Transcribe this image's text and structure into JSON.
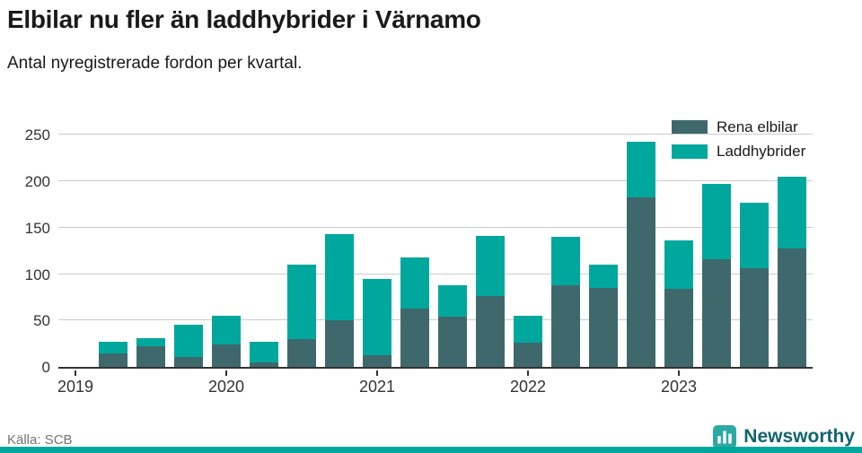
{
  "header": {
    "title": "Elbilar nu fler än laddhybrider i Värnamo",
    "subtitle": "Antal nyregistrerade fordon per kvartal."
  },
  "footer": {
    "source": "Källa: SCB",
    "brand": "Newsworthy"
  },
  "colors": {
    "accent": "#00a79d",
    "axis": "#333333",
    "grid": "#cccccc",
    "logo_icon": "#2ca9a4",
    "logo_text": "#10656e"
  },
  "chart_data": {
    "type": "bar",
    "stacked": true,
    "title": "Elbilar nu fler än laddhybrider i Värnamo",
    "subtitle": "Antal nyregistrerade fordon per kvartal.",
    "xlabel": "",
    "ylabel": "",
    "legend_position": "top-right",
    "grid": true,
    "yticks": [
      0,
      50,
      100,
      150,
      200,
      250
    ],
    "ylim": [
      0,
      262
    ],
    "xticks": [
      "2019",
      "2020",
      "2021",
      "2022",
      "2023"
    ],
    "quarters": [
      "2019 K2",
      "2019 K3",
      "2019 K4",
      "2020 K1",
      "2020 K2",
      "2020 K3",
      "2020 K4",
      "2021 K1",
      "2021 K2",
      "2021 K3",
      "2021 K4",
      "2022 K1",
      "2022 K2",
      "2022 K3",
      "2022 K4",
      "2023 K1",
      "2023 K2",
      "2023 K3",
      "2023 K4"
    ],
    "series": [
      {
        "name": "Rena elbilar",
        "color": "#3f686c",
        "values": [
          15,
          22,
          11,
          24,
          5,
          30,
          50,
          13,
          63,
          54,
          76,
          26,
          88,
          85,
          183,
          84,
          116,
          106,
          128
        ]
      },
      {
        "name": "Laddhybrider",
        "color": "#00a79d",
        "values": [
          12,
          9,
          34,
          31,
          22,
          80,
          93,
          82,
          55,
          34,
          65,
          29,
          52,
          25,
          60,
          52,
          81,
          71,
          77
        ]
      }
    ]
  }
}
